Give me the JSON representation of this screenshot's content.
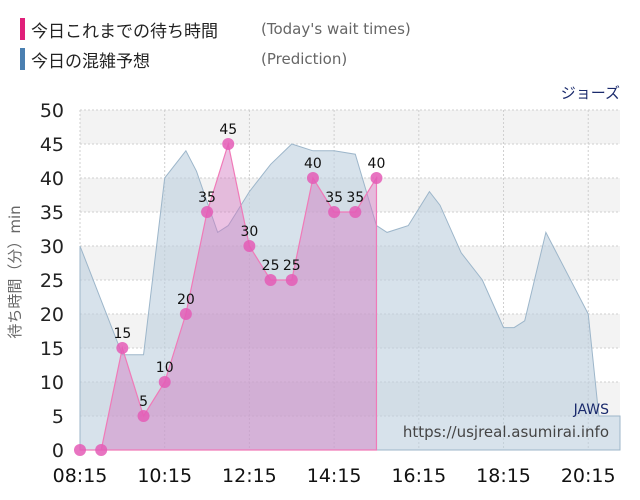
{
  "legend": {
    "today_label": "今日これまでの待ち時間",
    "today_sub": "(Today's wait times)",
    "prediction_label": "今日の混雑予想",
    "prediction_sub": "(Prediction)"
  },
  "attraction_name": "ジョーズ",
  "watermark": {
    "brand": "JAWS",
    "url": "https://usjreal.asumirai.info"
  },
  "colors": {
    "today": "#e0207a",
    "prediction": "#4a7fb0"
  },
  "chart_data": {
    "type": "area",
    "ylabel": "待ち時間（分）min",
    "ylim": [
      0,
      50
    ],
    "yticks": [
      0,
      5,
      10,
      15,
      20,
      25,
      30,
      35,
      40,
      45,
      50
    ],
    "xlim": [
      "08:15",
      "21:00"
    ],
    "xticks": [
      "08:15",
      "10:15",
      "12:15",
      "14:15",
      "16:15",
      "18:15",
      "20:15"
    ],
    "grid": true,
    "series": [
      {
        "name": "今日これまでの待ち時間",
        "x": [
          "08:15",
          "08:45",
          "09:15",
          "09:45",
          "10:15",
          "10:45",
          "11:15",
          "11:45",
          "12:15",
          "12:45",
          "13:15",
          "13:45",
          "14:15",
          "14:45",
          "15:15"
        ],
        "values": [
          0,
          0,
          15,
          5,
          10,
          20,
          35,
          45,
          30,
          25,
          25,
          40,
          35,
          35,
          40
        ]
      },
      {
        "name": "今日の混雑予想",
        "x": [
          "08:15",
          "08:45",
          "09:15",
          "09:45",
          "10:15",
          "10:45",
          "11:00",
          "11:30",
          "11:45",
          "12:15",
          "12:45",
          "13:15",
          "13:45",
          "14:15",
          "14:45",
          "15:15",
          "15:30",
          "16:00",
          "16:30",
          "16:45",
          "17:15",
          "17:45",
          "18:15",
          "18:30",
          "18:45",
          "19:15",
          "19:45",
          "20:15",
          "20:30",
          "21:00"
        ],
        "values": [
          30,
          22,
          14,
          14,
          40,
          44,
          41,
          32,
          33,
          38,
          42,
          45,
          44,
          44,
          43.5,
          33,
          32,
          33,
          38,
          36,
          29,
          25,
          18,
          18,
          19,
          32,
          26,
          20,
          5,
          5
        ]
      }
    ]
  }
}
